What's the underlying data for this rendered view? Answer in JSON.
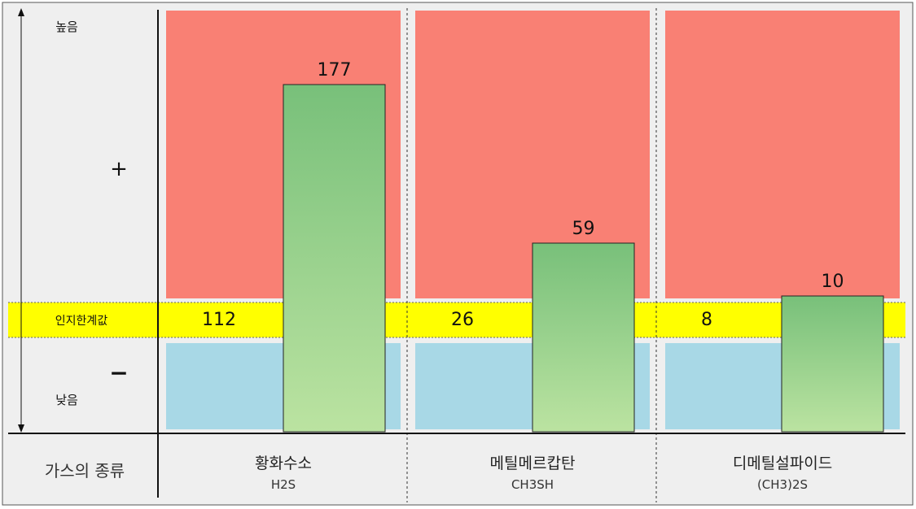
{
  "chart_data": {
    "type": "bar",
    "categories": [
      {
        "name": "황화수소",
        "formula": "H2S"
      },
      {
        "name": "메틸메르캅탄",
        "formula": "CH3SH"
      },
      {
        "name": "디메틸설파이드",
        "formula": "(CH3)2S"
      }
    ],
    "values": [
      177,
      59,
      10
    ],
    "threshold_values": [
      112,
      26,
      8
    ],
    "threshold_label": "인지한계값",
    "axis": {
      "high_label": "높음",
      "low_label": "낮음",
      "plus": "+",
      "minus": "−"
    },
    "category_axis_label": "가스의 종류",
    "colors": {
      "above_zone": "#f98074",
      "below_zone": "#a8d8e6",
      "threshold_band": "#ffff00",
      "bar_top": "#78c07a",
      "bar_bottom": "#bbe3a1",
      "panel_bg": "#efefef"
    }
  }
}
